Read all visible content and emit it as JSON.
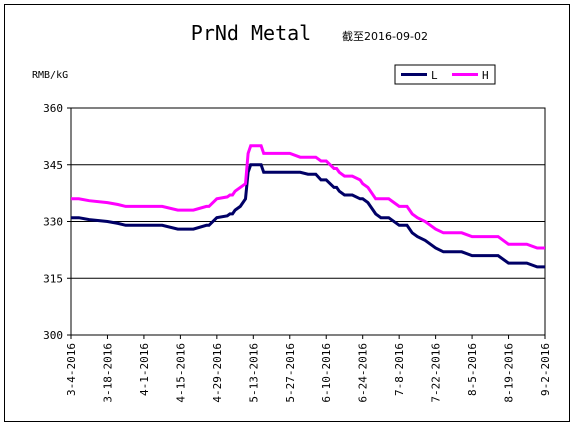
{
  "chart_data": {
    "type": "line",
    "title": "PrNd Metal",
    "subtitle": "截至2016-09-02",
    "ylabel": "RMB/kG",
    "xlabel": "",
    "ylim": [
      300,
      360
    ],
    "yticks": [
      300,
      315,
      330,
      345,
      360
    ],
    "xticks": [
      "3-4-2016",
      "3-18-2016",
      "4-1-2016",
      "4-15-2016",
      "4-29-2016",
      "5-13-2016",
      "5-27-2016",
      "6-10-2016",
      "6-24-2016",
      "7-8-2016",
      "7-22-2016",
      "8-5-2016",
      "8-19-2016",
      "9-2-2016"
    ],
    "grid": "horizontal",
    "legend_position": "top-right",
    "series": [
      {
        "name": "L",
        "color": "#000066",
        "x": [
          "2016-03-04",
          "2016-03-07",
          "2016-03-11",
          "2016-03-18",
          "2016-03-22",
          "2016-03-25",
          "2016-03-28",
          "2016-04-01",
          "2016-04-08",
          "2016-04-14",
          "2016-04-15",
          "2016-04-20",
          "2016-04-25",
          "2016-04-26",
          "2016-04-29",
          "2016-05-03",
          "2016-05-04",
          "2016-05-05",
          "2016-05-06",
          "2016-05-08",
          "2016-05-10",
          "2016-05-11",
          "2016-05-12",
          "2016-05-13",
          "2016-05-16",
          "2016-05-17",
          "2016-05-20",
          "2016-05-27",
          "2016-05-31",
          "2016-06-03",
          "2016-06-06",
          "2016-06-08",
          "2016-06-10",
          "2016-06-13",
          "2016-06-14",
          "2016-06-15",
          "2016-06-17",
          "2016-06-20",
          "2016-06-23",
          "2016-06-24",
          "2016-06-26",
          "2016-06-27",
          "2016-06-29",
          "2016-07-01",
          "2016-07-04",
          "2016-07-08",
          "2016-07-11",
          "2016-07-13",
          "2016-07-15",
          "2016-07-18",
          "2016-07-20",
          "2016-07-22",
          "2016-07-25",
          "2016-07-27",
          "2016-08-01",
          "2016-08-05",
          "2016-08-08",
          "2016-08-12",
          "2016-08-15",
          "2016-08-19",
          "2016-08-26",
          "2016-08-30",
          "2016-09-01",
          "2016-09-02"
        ],
        "values": [
          331,
          331,
          330.5,
          330,
          329.5,
          329,
          329,
          329,
          329,
          328,
          328,
          328,
          329,
          329,
          331,
          331.5,
          332,
          332,
          333,
          334,
          336,
          343,
          345,
          345,
          345,
          343,
          343,
          343,
          343,
          342.5,
          342.5,
          341,
          341,
          339,
          339,
          338,
          337,
          337,
          336,
          336,
          335,
          334,
          332,
          331,
          331,
          329,
          329,
          327,
          326,
          325,
          324,
          323,
          322,
          322,
          322,
          321,
          321,
          321,
          321,
          319,
          319,
          318,
          318,
          318
        ]
      },
      {
        "name": "H",
        "color": "#ff00ff",
        "x": [
          "2016-03-04",
          "2016-03-07",
          "2016-03-11",
          "2016-03-18",
          "2016-03-22",
          "2016-03-25",
          "2016-03-28",
          "2016-04-01",
          "2016-04-08",
          "2016-04-14",
          "2016-04-15",
          "2016-04-20",
          "2016-04-25",
          "2016-04-26",
          "2016-04-29",
          "2016-05-03",
          "2016-05-04",
          "2016-05-05",
          "2016-05-06",
          "2016-05-08",
          "2016-05-10",
          "2016-05-11",
          "2016-05-12",
          "2016-05-13",
          "2016-05-16",
          "2016-05-17",
          "2016-05-20",
          "2016-05-27",
          "2016-05-31",
          "2016-06-03",
          "2016-06-06",
          "2016-06-08",
          "2016-06-10",
          "2016-06-13",
          "2016-06-14",
          "2016-06-15",
          "2016-06-17",
          "2016-06-20",
          "2016-06-23",
          "2016-06-24",
          "2016-06-26",
          "2016-06-27",
          "2016-06-29",
          "2016-07-01",
          "2016-07-04",
          "2016-07-08",
          "2016-07-11",
          "2016-07-13",
          "2016-07-15",
          "2016-07-18",
          "2016-07-20",
          "2016-07-22",
          "2016-07-25",
          "2016-07-27",
          "2016-08-01",
          "2016-08-05",
          "2016-08-08",
          "2016-08-12",
          "2016-08-15",
          "2016-08-19",
          "2016-08-26",
          "2016-08-30",
          "2016-09-01",
          "2016-09-02"
        ],
        "values": [
          336,
          336,
          335.5,
          335,
          334.5,
          334,
          334,
          334,
          334,
          333,
          333,
          333,
          334,
          334,
          336,
          336.5,
          337,
          337,
          338,
          339,
          340,
          348,
          350,
          350,
          350,
          348,
          348,
          348,
          347,
          347,
          347,
          346,
          346,
          344,
          344,
          343,
          342,
          342,
          341,
          340,
          339,
          338,
          336,
          336,
          336,
          334,
          334,
          332,
          331,
          330,
          329,
          328,
          327,
          327,
          327,
          326,
          326,
          326,
          326,
          324,
          324,
          323,
          323,
          323
        ]
      }
    ]
  }
}
